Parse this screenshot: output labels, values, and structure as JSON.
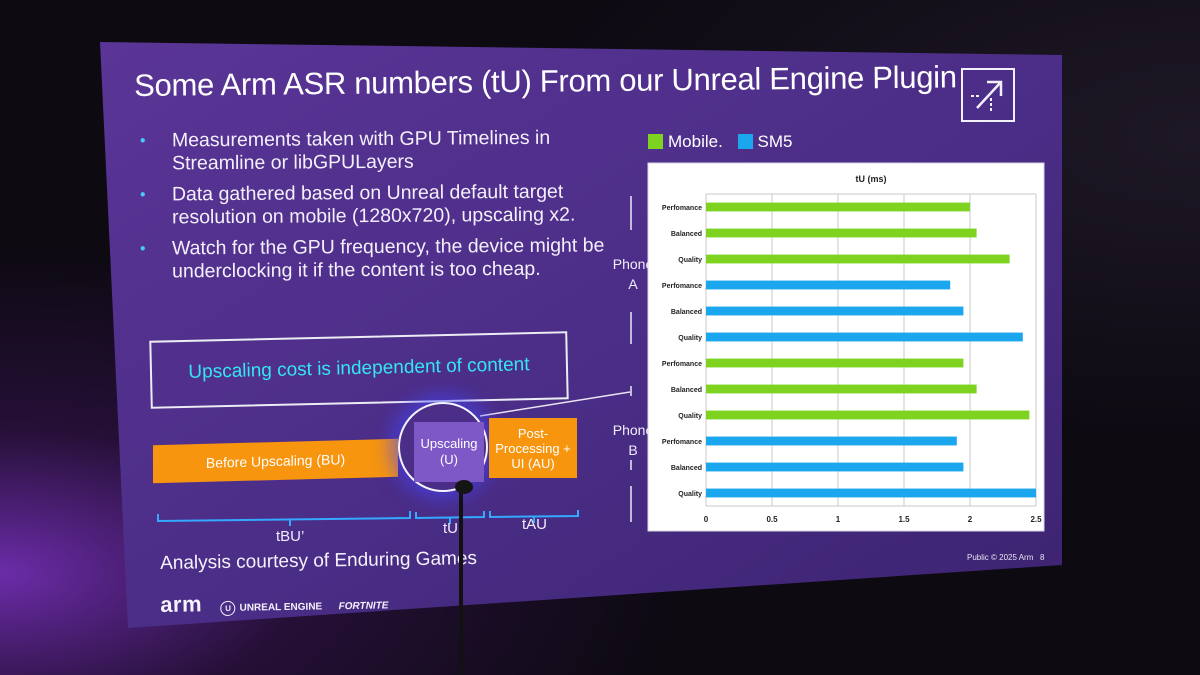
{
  "slide": {
    "title": "Some Arm ASR numbers (tU) From our Unreal Engine Plugin",
    "bullets": [
      "Measurements taken with GPU Timelines in Streamline or libGPULayers",
      "Data gathered based on Unreal default target resolution on mobile (1280x720), upscaling x2.",
      "Watch for the GPU frequency, the device might be underclocking it if the content is too cheap."
    ],
    "callout": "Upscaling cost is independent of content",
    "pipeline": {
      "before": "Before Upscaling (BU)",
      "upscaling": "Upscaling (U)",
      "post": "Post-Processing + UI (AU)",
      "label_bu": "tBU’",
      "label_u": "tU",
      "label_au": "tAU"
    },
    "credit": "Analysis courtesy of Enduring Games",
    "logos": {
      "arm": "arm",
      "unreal": "UNREAL ENGINE",
      "fortnite": "FORTNITE"
    },
    "footer": "Public © 2025 Arm",
    "page_number": "8",
    "groups": [
      "Phone A",
      "Phone B"
    ]
  },
  "colors": {
    "slide_bg": "#4a2d86",
    "mobile": "#7ed321",
    "sm5": "#1aa7ee",
    "accent_cyan": "#35e6f2",
    "orange": "#f7950f"
  },
  "chart_data": {
    "type": "bar",
    "orientation": "horizontal",
    "title": "tU (ms)",
    "xlim": [
      0,
      2.5
    ],
    "xticks": [
      "0",
      "0.5",
      "1",
      "1.5",
      "2",
      "2.5"
    ],
    "legend": [
      {
        "name": "Mobile.",
        "color": "#7ed321"
      },
      {
        "name": "SM5",
        "color": "#1aa7ee"
      }
    ],
    "legend_position": "top",
    "bars": [
      {
        "label": "Perfomance",
        "group": "Phone A",
        "series": "Mobile.",
        "value": 2.0
      },
      {
        "label": "Balanced",
        "group": "Phone A",
        "series": "Mobile.",
        "value": 2.05
      },
      {
        "label": "Quality",
        "group": "Phone A",
        "series": "Mobile.",
        "value": 2.3
      },
      {
        "label": "Perfomance",
        "group": "Phone A",
        "series": "SM5",
        "value": 1.85
      },
      {
        "label": "Balanced",
        "group": "Phone A",
        "series": "SM5",
        "value": 1.95
      },
      {
        "label": "Quality",
        "group": "Phone A",
        "series": "SM5",
        "value": 2.4
      },
      {
        "label": "Perfomance",
        "group": "Phone B",
        "series": "Mobile.",
        "value": 1.95
      },
      {
        "label": "Balanced",
        "group": "Phone B",
        "series": "Mobile.",
        "value": 2.05
      },
      {
        "label": "Quality",
        "group": "Phone B",
        "series": "Mobile.",
        "value": 2.45
      },
      {
        "label": "Perfomance",
        "group": "Phone B",
        "series": "SM5",
        "value": 1.9
      },
      {
        "label": "Balanced",
        "group": "Phone B",
        "series": "SM5",
        "value": 1.95
      },
      {
        "label": "Quality",
        "group": "Phone B",
        "series": "SM5",
        "value": 2.5
      }
    ]
  }
}
